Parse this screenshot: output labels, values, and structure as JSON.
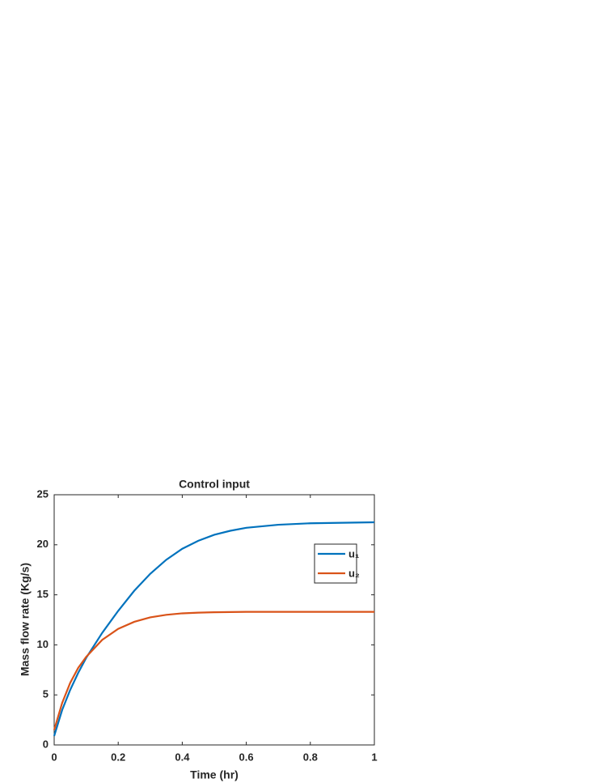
{
  "chart_data": {
    "type": "line",
    "title": "Control input",
    "x_label": "Time (hr)",
    "y_label": "Mass flow rate (Kg/s)",
    "x": [
      0,
      0.025,
      0.05,
      0.075,
      0.1,
      0.15,
      0.2,
      0.25,
      0.3,
      0.35,
      0.4,
      0.45,
      0.5,
      0.55,
      0.6,
      0.7,
      0.8,
      0.9,
      1.0
    ],
    "series": [
      {
        "name": "u₁",
        "color": "#0072bd",
        "values": [
          0.9,
          3.5,
          5.5,
          7.2,
          8.7,
          11.2,
          13.4,
          15.4,
          17.1,
          18.5,
          19.6,
          20.4,
          21.0,
          21.4,
          21.7,
          22.0,
          22.15,
          22.2,
          22.25
        ]
      },
      {
        "name": "u₂",
        "color": "#d95319",
        "values": [
          1.5,
          4.2,
          6.2,
          7.7,
          8.8,
          10.5,
          11.6,
          12.3,
          12.75,
          13.0,
          13.15,
          13.22,
          13.26,
          13.28,
          13.3,
          13.3,
          13.3,
          13.3,
          13.3
        ]
      }
    ],
    "xlim": [
      0,
      1
    ],
    "xticks": [
      0,
      0.2,
      0.4,
      0.6,
      0.8,
      1
    ],
    "ylim": [
      0,
      25
    ],
    "yticks": [
      0,
      5,
      10,
      15,
      20,
      25
    ],
    "grid": false,
    "legend": "northeast"
  }
}
